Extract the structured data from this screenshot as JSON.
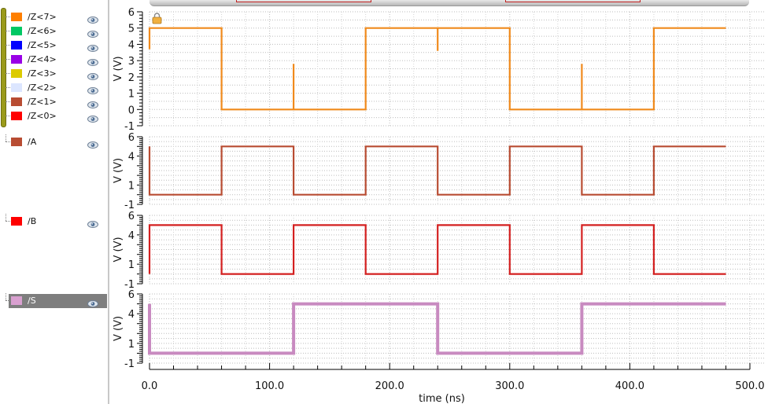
{
  "signals_panel": {
    "group": [
      {
        "name": "/Z<7>",
        "color": "#ff7f00"
      },
      {
        "name": "/Z<6>",
        "color": "#00c864"
      },
      {
        "name": "/Z<5>",
        "color": "#0000ff"
      },
      {
        "name": "/Z<4>",
        "color": "#9900e6"
      },
      {
        "name": "/Z<3>",
        "color": "#dccb00"
      },
      {
        "name": "/Z<2>",
        "color": "#dce6ff"
      },
      {
        "name": "/Z<1>",
        "color": "#b84c32"
      },
      {
        "name": "/Z<0>",
        "color": "#ff0000"
      }
    ],
    "singles": [
      {
        "name": "/A",
        "color": "#b84c32"
      },
      {
        "name": "/B",
        "color": "#ff0000"
      },
      {
        "name": "/S",
        "color": "#d9a0d0",
        "selected": true
      }
    ],
    "visibility_icon": "eye-icon"
  },
  "chart_data": {
    "type": "line",
    "title": "",
    "xlabel": "time (ns)",
    "xlim": [
      0,
      500
    ],
    "x_ticks": [
      "0.0",
      "100.0",
      "200.0",
      "300.0",
      "400.0",
      "500.0"
    ],
    "grid": true,
    "panels": [
      {
        "id": "Z",
        "ylabel": "V (V)",
        "ylim": [
          -1,
          6
        ],
        "y_ticks": [
          "-1",
          "0",
          "1",
          "2",
          "3",
          "4",
          "5",
          "6"
        ],
        "series": [
          {
            "name": "/Z<7>",
            "color": "#f08a1c",
            "x": [
              0,
              0,
              60,
              60,
              120,
              120,
              120,
              180,
              180,
              240,
              240,
              240,
              300,
              300,
              360,
              360,
              360,
              420,
              420,
              420,
              480
            ],
            "y": [
              3.7,
              5,
              5,
              0,
              0,
              2.8,
              0,
              0,
              5,
              5,
              3.6,
              5,
              5,
              0,
              0,
              2.8,
              0,
              0,
              2.5,
              5,
              5
            ]
          }
        ]
      },
      {
        "id": "A",
        "ylabel": "V (V)",
        "ylim": [
          -1,
          6
        ],
        "y_ticks": [
          "-1",
          "1",
          "4",
          "6"
        ],
        "series": [
          {
            "name": "/A",
            "color": "#b84c32",
            "x": [
              0,
              0,
              60,
              60,
              120,
              120,
              180,
              180,
              240,
              240,
              300,
              300,
              360,
              360,
              420,
              420,
              480
            ],
            "y": [
              5,
              0,
              0,
              5,
              5,
              0,
              0,
              5,
              5,
              0,
              0,
              5,
              5,
              0,
              0,
              5,
              5
            ]
          }
        ]
      },
      {
        "id": "B",
        "ylabel": "V (V)",
        "ylim": [
          -1,
          6
        ],
        "y_ticks": [
          "-1",
          "1",
          "4",
          "6"
        ],
        "series": [
          {
            "name": "/B",
            "color": "#d42020",
            "x": [
              0,
              0,
              60,
              60,
              120,
              120,
              180,
              180,
              240,
              240,
              300,
              300,
              360,
              360,
              420,
              420,
              480
            ],
            "y": [
              0,
              5,
              5,
              0,
              0,
              5,
              5,
              0,
              0,
              5,
              5,
              0,
              0,
              5,
              5,
              0,
              0
            ]
          }
        ]
      },
      {
        "id": "S",
        "ylabel": "V (V)",
        "ylim": [
          -1,
          6
        ],
        "y_ticks": [
          "-1",
          "1",
          "4",
          "6"
        ],
        "series": [
          {
            "name": "/S",
            "color": "#c88ac0",
            "x": [
              0,
              0,
              120,
              120,
              240,
              240,
              360,
              360,
              480
            ],
            "y": [
              5,
              0,
              0,
              5,
              5,
              0,
              0,
              5,
              5
            ]
          }
        ]
      }
    ]
  }
}
